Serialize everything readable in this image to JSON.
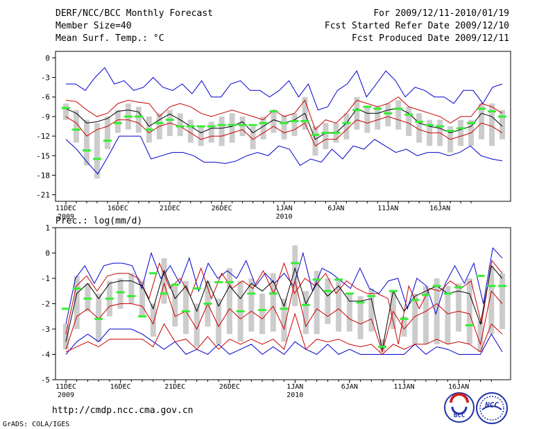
{
  "header": {
    "title_left": "DERF/NCC/BCC Monthly Forecast",
    "member_size": "Member Size=40",
    "variable_top": "Mean Surf. Temp.: °C",
    "for_period": "For 2009/12/11-2010/01/19",
    "started_date": "Fcst Started Refer Date 2009/12/10",
    "produced_date": "Fcst Produced Date 2009/12/11"
  },
  "footer": {
    "url": "http://cmdp.ncc.cma.gov.cn",
    "grads": "GrADS: COLA/IGES",
    "logo_bcc": "BCC",
    "logo_ncc": "NCC"
  },
  "colors": {
    "box": "#cccccc",
    "mean": "#000000",
    "std": "#cc0000",
    "extreme": "#0000cc",
    "median": "#33ee33"
  },
  "chart_data": [
    {
      "type": "line",
      "title": "Mean Surf. Temp.: °C",
      "x_tick_labels": [
        "11DEC",
        "16DEC",
        "21DEC",
        "26DEC",
        "1JAN",
        "6JAN",
        "11JAN",
        "16JAN"
      ],
      "x_tick_days": [
        1,
        6,
        11,
        16,
        22,
        27,
        32,
        37
      ],
      "year_labels": [
        {
          "day": 1,
          "label": "2009"
        },
        {
          "day": 22,
          "label": "2010"
        }
      ],
      "days": 40,
      "ylim": [
        -22,
        1
      ],
      "y_ticks": [
        0,
        -3,
        -6,
        -9,
        -12,
        -15,
        -18,
        -21
      ],
      "y_tick_labels": [
        "0",
        "-3",
        "-6",
        "-9",
        "-12",
        "-15",
        "-18",
        "-21"
      ],
      "series": [
        {
          "name": "max",
          "values": [
            -4,
            -4,
            -5,
            -3,
            -1.5,
            -4,
            -3.5,
            -5,
            -4.5,
            -3,
            -4.5,
            -5,
            -4,
            -5.5,
            -3.5,
            -6,
            -6,
            -4,
            -3.5,
            -5,
            -5,
            -6,
            -5,
            -3.5,
            -6,
            -4,
            -8,
            -7.5,
            -5,
            -4,
            -2,
            -6,
            -4,
            -2,
            -3.5,
            -6,
            -4.5,
            -5,
            -6,
            -6,
            -7,
            -5,
            -5,
            -7,
            -4.5,
            -4
          ]
        },
        {
          "name": "upper",
          "values": [
            -6.5,
            -6.7,
            -8,
            -9,
            -8.5,
            -7,
            -6.5,
            -6.8,
            -7,
            -9,
            -7.5,
            -7,
            -7.5,
            -8.5,
            -9,
            -8.5,
            -8,
            -8.5,
            -9,
            -9.5,
            -8,
            -9,
            -8.5,
            -6.5,
            -11,
            -9.5,
            -10,
            -8.5,
            -6.5,
            -7,
            -7.5,
            -7,
            -6,
            -7.5,
            -8,
            -8.5,
            -9,
            -10,
            -9,
            -9,
            -7,
            -7.5,
            -8.5
          ]
        },
        {
          "name": "mean",
          "values": [
            -7.8,
            -8.5,
            -10,
            -9.8,
            -9.3,
            -8.2,
            -8,
            -8.3,
            -10.5,
            -9.5,
            -8.6,
            -9.5,
            -10.5,
            -11.5,
            -10.8,
            -10.8,
            -10.5,
            -9.8,
            -11.5,
            -10.5,
            -9.5,
            -10,
            -9.5,
            -8.5,
            -12.5,
            -11.5,
            -11.5,
            -10,
            -7.8,
            -8.5,
            -8.5,
            -8,
            -7.7,
            -8.5,
            -10,
            -10.5,
            -10.8,
            -11.5,
            -11,
            -10.5,
            -8.5,
            -9,
            -10.5
          ]
        },
        {
          "name": "lower",
          "values": [
            -9,
            -10,
            -12,
            -11,
            -10.5,
            -9.5,
            -9.5,
            -10,
            -11.5,
            -10.5,
            -10,
            -10.5,
            -11.5,
            -12.5,
            -12,
            -12,
            -11.5,
            -11,
            -12.5,
            -11.5,
            -10.5,
            -11.5,
            -11,
            -10,
            -13.5,
            -12.5,
            -12.5,
            -11,
            -9.5,
            -10,
            -9.5,
            -9,
            -9.5,
            -10,
            -11,
            -11.5,
            -11.5,
            -12.5,
            -12,
            -11.5,
            -10,
            -10.5,
            -11.5
          ]
        },
        {
          "name": "min",
          "values": [
            -12.5,
            -14,
            -16,
            -17.8,
            -15,
            -12,
            -12,
            -12,
            -15.5,
            -15,
            -14.5,
            -14.5,
            -15,
            -16,
            -16,
            -16.2,
            -15.8,
            -15,
            -14.5,
            -15,
            -13.5,
            -14,
            -16.5,
            -15.5,
            -16,
            -14,
            -15.5,
            -13.5,
            -14,
            -12.5,
            -13.5,
            -14.5,
            -14,
            -15,
            -14.5,
            -14.5,
            -15,
            -14.5,
            -13.5,
            -15,
            -15.5,
            -15.8
          ]
        },
        {
          "name": "box_high",
          "values": [
            -7,
            -8,
            -9.5,
            -10,
            -9,
            -8,
            -7,
            -7.5,
            -9,
            -8.5,
            -8,
            -8.5,
            -9.5,
            -10.5,
            -9.8,
            -9,
            -8.5,
            -9,
            -10.5,
            -9,
            -8,
            -8.8,
            -8.5,
            -6,
            -10.5,
            -10,
            -10,
            -8.5,
            -6,
            -7.5,
            -7.5,
            -7,
            -6.5,
            -7.5,
            -8.5,
            -9.5,
            -9.5,
            -10.5,
            -9.5,
            -9.5,
            -7,
            -7,
            -8
          ]
        },
        {
          "name": "box_low",
          "values": [
            -9.5,
            -13,
            -16.5,
            -18.5,
            -14,
            -11.5,
            -11,
            -11.5,
            -13,
            -12.5,
            -12,
            -12,
            -13,
            -13.5,
            -13,
            -13.5,
            -13,
            -12,
            -14,
            -12.5,
            -11.5,
            -12.5,
            -12,
            -11,
            -15,
            -14,
            -13,
            -12.5,
            -11,
            -11.5,
            -11,
            -10.5,
            -11,
            -12,
            -13,
            -13.5,
            -13.5,
            -14.5,
            -13.5,
            -13.5,
            -12.5,
            -13.5,
            -12.5
          ]
        },
        {
          "name": "median",
          "values": [
            -7.7,
            -11,
            -14.2,
            -15.5,
            -12.7,
            -10,
            -9,
            -9,
            -11,
            -10,
            -9.5,
            -10.5,
            -10.5,
            -10.5,
            -10.5,
            -10.3,
            -10.3,
            -10.3,
            -10.3,
            -10,
            -8.2,
            -10,
            -9.7,
            -9.7,
            -11.8,
            -11.5,
            -11.5,
            -10,
            -8,
            -7.5,
            -7.8,
            -8.5,
            -7.8,
            -8.7,
            -9.8,
            -10.3,
            -10.5,
            -11.2,
            -10.8,
            -10,
            -7.8,
            -8.2,
            -9
          ]
        }
      ]
    },
    {
      "type": "line",
      "title": "Prec.: log(mm/d)",
      "x_tick_labels": [
        "11DEC",
        "16DEC",
        "21DEC",
        "26DEC",
        "1JAN",
        "6JAN",
        "11JAN",
        "16JAN"
      ],
      "x_tick_days": [
        1,
        6,
        11,
        16,
        22,
        27,
        32,
        37
      ],
      "year_labels": [
        {
          "day": 1,
          "label": "2009"
        },
        {
          "day": 22,
          "label": "2010"
        }
      ],
      "days": 40,
      "ylim": [
        -5,
        1
      ],
      "y_ticks": [
        1,
        0,
        -1,
        -2,
        -3,
        -4,
        -5
      ],
      "y_tick_labels": [
        "1",
        "0",
        "-1",
        "-2",
        "-3",
        "-4",
        "-5"
      ],
      "series": [
        {
          "name": "max",
          "values": [
            -2.8,
            -1,
            -0.5,
            -1.2,
            -0.5,
            -0.4,
            -0.4,
            -0.5,
            -1.4,
            0,
            -1,
            -0.5,
            -1.2,
            -0.2,
            -1.5,
            -0.4,
            -1,
            -0.7,
            -1,
            -0.3,
            -1.3,
            -0.8,
            -1.2,
            -0.8,
            -1.3,
            0,
            -1.5,
            -0.6,
            -0.8,
            -1.1,
            -1.4,
            -0.6,
            -1.4,
            -1.6,
            -1.1,
            -1,
            -2.2,
            -1,
            -1.3,
            -2.4,
            -1.2,
            -0.5,
            -1.2,
            -0.4,
            -2,
            0.2,
            -0.2
          ]
        },
        {
          "name": "upper",
          "values": [
            -3.2,
            -1.3,
            -0.9,
            -1.5,
            -0.9,
            -0.8,
            -0.8,
            -1,
            -1.8,
            -0.4,
            -1.4,
            -1,
            -1.7,
            -0.6,
            -1.8,
            -0.8,
            -1.4,
            -1.1,
            -1.4,
            -0.7,
            -1.6,
            -0.4,
            -1.6,
            -1,
            -1.3,
            -0.8,
            -1.6,
            -1.1,
            -1.4,
            -1.6,
            -1.6,
            -1.8,
            -3.6,
            -1.3,
            -2.2,
            -1.4,
            -1.5,
            -1.1,
            -1.4,
            -1.1,
            -2.8,
            -0.3,
            -0.8
          ]
        },
        {
          "name": "mean",
          "values": [
            -3.5,
            -1.6,
            -1.2,
            -1.8,
            -1.2,
            -1.1,
            -1.1,
            -1.3,
            -2.2,
            -0.7,
            -1.8,
            -1.3,
            -2.3,
            -1.1,
            -2.1,
            -1.3,
            -1.8,
            -1.2,
            -1.5,
            -1.1,
            -2.1,
            -0.6,
            -2,
            -1.2,
            -1.7,
            -1.3,
            -1.9,
            -1.9,
            -1.8,
            -3.8,
            -1.5,
            -2.3,
            -1.7,
            -1.5,
            -1.3,
            -1.6,
            -1.5,
            -1.6,
            -2.8,
            -0.5,
            -1
          ]
        },
        {
          "name": "lower",
          "values": [
            -3.8,
            -2.5,
            -2.2,
            -2.6,
            -2.1,
            -2,
            -2,
            -2.1,
            -2.8,
            -1.2,
            -2.5,
            -2.3,
            -3,
            -2,
            -2.9,
            -2.2,
            -2.6,
            -2.3,
            -2.6,
            -2.1,
            -3,
            -1.1,
            -2.9,
            -2.2,
            -2.5,
            -2.2,
            -2.6,
            -2.8,
            -2.6,
            -3.9,
            -2.3,
            -3,
            -2.5,
            -2.3,
            -2,
            -2.4,
            -2.3,
            -2.4,
            -3.6,
            -1.5,
            -2
          ]
        },
        {
          "name": "lowest",
          "values": [
            -3.9,
            -3.7,
            -3.5,
            -3.7,
            -3.4,
            -3.4,
            -3.4,
            -3.4,
            -3.7,
            -2.8,
            -3.5,
            -3.4,
            -3.8,
            -3.3,
            -3.8,
            -3.4,
            -3.6,
            -3.4,
            -3.6,
            -3.4,
            -3.8,
            -2.4,
            -3.8,
            -3.4,
            -3.5,
            -3.4,
            -3.6,
            -3.7,
            -3.6,
            -4,
            -3.6,
            -3.8,
            -3.6,
            -3.6,
            -3.4,
            -3.6,
            -3.5,
            -3.6,
            -3.9,
            -2.8,
            -3.2
          ]
        },
        {
          "name": "min",
          "values": [
            -4,
            -3.5,
            -3.2,
            -3.5,
            -3,
            -3,
            -3,
            -3.2,
            -3.5,
            -3.8,
            -3.5,
            -4,
            -3.8,
            -4,
            -3.6,
            -4,
            -3.8,
            -3.6,
            -4,
            -3.7,
            -4,
            -3.5,
            -3.8,
            -4,
            -3.6,
            -4,
            -3.8,
            -4,
            -4,
            -4,
            -4,
            -4,
            -3.6,
            -4,
            -3.7,
            -3.8,
            -4,
            -4,
            -4,
            -3.2,
            -3.9
          ]
        },
        {
          "name": "box_high",
          "values": [
            -2.8,
            -0.9,
            -1.2,
            -1.6,
            -1.1,
            -1.0,
            -0.8,
            -1.1,
            -2,
            -0.2,
            -1.3,
            -1.1,
            -2,
            -1.1,
            -1.8,
            -0.6,
            -1.1,
            -1,
            -1.6,
            -0.8,
            -1.8,
            0.3,
            -1.5,
            -0.7,
            -1,
            -1,
            -1.6,
            -1.7,
            -1.4,
            -3.4,
            -1.5,
            -2.5,
            -1.6,
            -1.3,
            -1,
            -1.3,
            -1.2,
            -1,
            -2.7,
            -0.5,
            -0.8
          ]
        },
        {
          "name": "box_low",
          "values": [
            -3.8,
            -3,
            -2.3,
            -3.5,
            -2.5,
            -2.2,
            -2,
            -2.5,
            -3.3,
            -2,
            -2.9,
            -3.2,
            -3.7,
            -2.9,
            -3.6,
            -3.2,
            -3.5,
            -3.1,
            -3.2,
            -3.1,
            -3.5,
            -2.1,
            -3.2,
            -3.2,
            -2.8,
            -3.1,
            -3.1,
            -3.4,
            -3.1,
            -3.9,
            -3,
            -3.3,
            -3.6,
            -3.6,
            -3.6,
            -3.6,
            -3.1,
            -3.6,
            -3.9,
            -3.2,
            -3
          ]
        },
        {
          "name": "median",
          "values": [
            -2.2,
            -1.4,
            -1.8,
            -2.6,
            -1.8,
            -1.55,
            -1.7,
            -2.5,
            -0.8,
            -1.6,
            -1.25,
            -2.3,
            -1.4,
            -2,
            -1.15,
            -1.15,
            -2.3,
            -1.6,
            -2.25,
            -1.6,
            -2.2,
            -0.4,
            -2.05,
            -1.05,
            -1.5,
            -1.05,
            -1.6,
            -1.95,
            -1.7,
            -3.7,
            -1.5,
            -2.6,
            -1.85,
            -1.65,
            -1.3,
            -1.6,
            -1.35,
            -2.85,
            -0.9,
            -1.3,
            -1.3
          ]
        }
      ]
    }
  ]
}
